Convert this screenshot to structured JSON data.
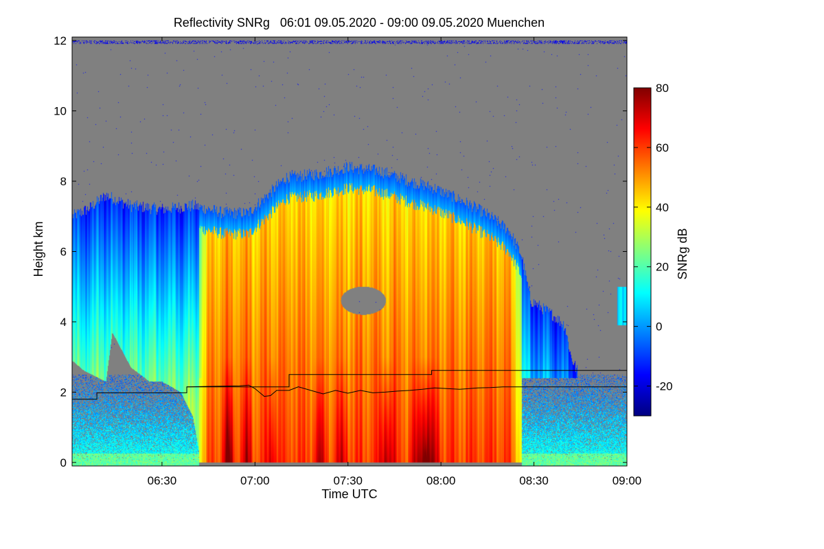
{
  "chart_data": {
    "type": "heatmap",
    "title": "Reflectivity SNRg   06:01 09.05.2020 - 09:00 09.05.2020 Muenchen",
    "xlabel": "Time UTC",
    "ylabel": "Height km",
    "colorbar_label": "SNRg dB",
    "x_range_minutes_utc": [
      361,
      540
    ],
    "x_ticks": [
      {
        "minute": 390,
        "label": "06:30"
      },
      {
        "minute": 420,
        "label": "07:00"
      },
      {
        "minute": 450,
        "label": "07:30"
      },
      {
        "minute": 480,
        "label": "08:00"
      },
      {
        "minute": 510,
        "label": "08:30"
      },
      {
        "minute": 540,
        "label": "09:00"
      }
    ],
    "y_range_km": [
      -0.1,
      12.1
    ],
    "y_ticks": [
      0,
      2,
      4,
      6,
      8,
      10,
      12
    ],
    "color_range_db": [
      -30,
      80
    ],
    "colorbar_ticks": [
      80,
      60,
      40,
      20,
      0,
      -20
    ],
    "no_signal_color": "#808080",
    "colormap": [
      "#000080",
      "#0000ff",
      "#0080ff",
      "#00ffff",
      "#80ff80",
      "#ffff00",
      "#ff8000",
      "#ff0000",
      "#800000"
    ],
    "cloud_top_km": [
      [
        361,
        7.0
      ],
      [
        366,
        7.2
      ],
      [
        372,
        7.6
      ],
      [
        380,
        7.3
      ],
      [
        390,
        7.2
      ],
      [
        400,
        7.3
      ],
      [
        410,
        7.1
      ],
      [
        418,
        7.1
      ],
      [
        424,
        7.6
      ],
      [
        430,
        8.1
      ],
      [
        440,
        8.2
      ],
      [
        450,
        8.4
      ],
      [
        460,
        8.3
      ],
      [
        470,
        8.0
      ],
      [
        478,
        7.8
      ],
      [
        488,
        7.4
      ],
      [
        496,
        7.0
      ],
      [
        502,
        6.6
      ],
      [
        506,
        5.9
      ],
      [
        509,
        4.6
      ],
      [
        516,
        4.2
      ],
      [
        520,
        3.9
      ],
      [
        522,
        3.0
      ],
      [
        524,
        2.6
      ]
    ],
    "cloud_base_km": [
      [
        361,
        2.9
      ],
      [
        365,
        2.6
      ],
      [
        372,
        2.3
      ],
      [
        374,
        3.7
      ],
      [
        380,
        2.7
      ],
      [
        386,
        2.3
      ],
      [
        390,
        2.3
      ],
      [
        396,
        2.0
      ],
      [
        400,
        1.3
      ],
      [
        402,
        0.3
      ]
    ],
    "precip_start_min": 402,
    "precip_end_min": 506,
    "isolated_echo_right": [
      [
        538,
        5.0
      ],
      [
        540,
        4.4
      ],
      [
        537,
        4.0
      ]
    ],
    "hole": {
      "center_min": 455,
      "center_km": 4.6,
      "radius_km": 0.4
    },
    "core_columns": [
      {
        "start": 410,
        "end": 413,
        "peak_db": 68
      },
      {
        "start": 416,
        "end": 419,
        "peak_db": 60
      },
      {
        "start": 424,
        "end": 427,
        "peak_db": 58
      },
      {
        "start": 439,
        "end": 443,
        "peak_db": 60
      },
      {
        "start": 446,
        "end": 450,
        "peak_db": 58
      },
      {
        "start": 460,
        "end": 465,
        "peak_db": 64
      },
      {
        "start": 470,
        "end": 480,
        "peak_db": 70
      }
    ],
    "overlay_lines": [
      {
        "color": "#000000",
        "points": [
          [
            361,
            1.8
          ],
          [
            369,
            1.8
          ],
          [
            369,
            1.98
          ],
          [
            398,
            1.98
          ],
          [
            398,
            2.15
          ],
          [
            431,
            2.15
          ],
          [
            431,
            2.5
          ],
          [
            477,
            2.5
          ],
          [
            477,
            2.62
          ],
          [
            540,
            2.62
          ]
        ]
      },
      {
        "color": "#000000",
        "points": [
          [
            398,
            2.15
          ],
          [
            415,
            2.18
          ],
          [
            418,
            2.2
          ],
          [
            420,
            2.1
          ],
          [
            423,
            1.88
          ],
          [
            425,
            1.9
          ],
          [
            427,
            2.05
          ],
          [
            431,
            2.05
          ],
          [
            434,
            2.15
          ],
          [
            438,
            2.05
          ],
          [
            442,
            1.95
          ],
          [
            446,
            2.05
          ],
          [
            450,
            1.97
          ],
          [
            454,
            2.05
          ],
          [
            458,
            1.98
          ],
          [
            462,
            2.0
          ],
          [
            466,
            2.03
          ],
          [
            470,
            2.05
          ],
          [
            474,
            2.08
          ],
          [
            478,
            2.12
          ],
          [
            482,
            2.1
          ],
          [
            486,
            2.08
          ],
          [
            492,
            2.12
          ],
          [
            496,
            2.13
          ],
          [
            500,
            2.15
          ],
          [
            506,
            2.15
          ],
          [
            540,
            2.15
          ]
        ]
      }
    ]
  }
}
